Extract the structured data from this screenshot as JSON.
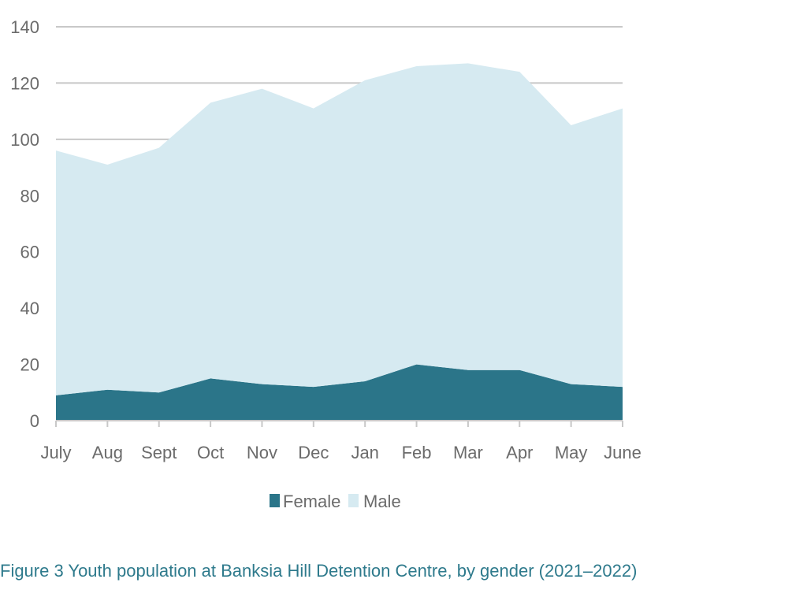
{
  "chart_data": {
    "type": "area",
    "stacked": true,
    "title": "",
    "xlabel": "",
    "ylabel": "",
    "categories": [
      "July",
      "Aug",
      "Sept",
      "Oct",
      "Nov",
      "Dec",
      "Jan",
      "Feb",
      "Mar",
      "Apr",
      "May",
      "June"
    ],
    "series": [
      {
        "name": "Female",
        "color": "#2b7589",
        "values": [
          9,
          11,
          10,
          15,
          13,
          12,
          14,
          20,
          18,
          18,
          13,
          12
        ]
      },
      {
        "name": "Male",
        "color": "#d6eaf1",
        "values": [
          87,
          80,
          87,
          98,
          105,
          99,
          107,
          106,
          109,
          106,
          92,
          99
        ]
      }
    ],
    "totals": [
      96,
      91,
      97,
      113,
      118,
      111,
      121,
      126,
      127,
      124,
      105,
      111
    ],
    "ylim": [
      0,
      140
    ],
    "yticks": [
      0,
      20,
      40,
      60,
      80,
      100,
      120,
      140
    ],
    "grid": true,
    "legend_position": "bottom"
  },
  "caption": "Figure 3 Youth population at Banksia Hill Detention Centre, by gender (2021–2022)",
  "colors": {
    "axis": "#c8c8c8",
    "grid": "#c8c8c8",
    "tick_text": "#6b6b6b",
    "caption": "#2e7a8c"
  }
}
